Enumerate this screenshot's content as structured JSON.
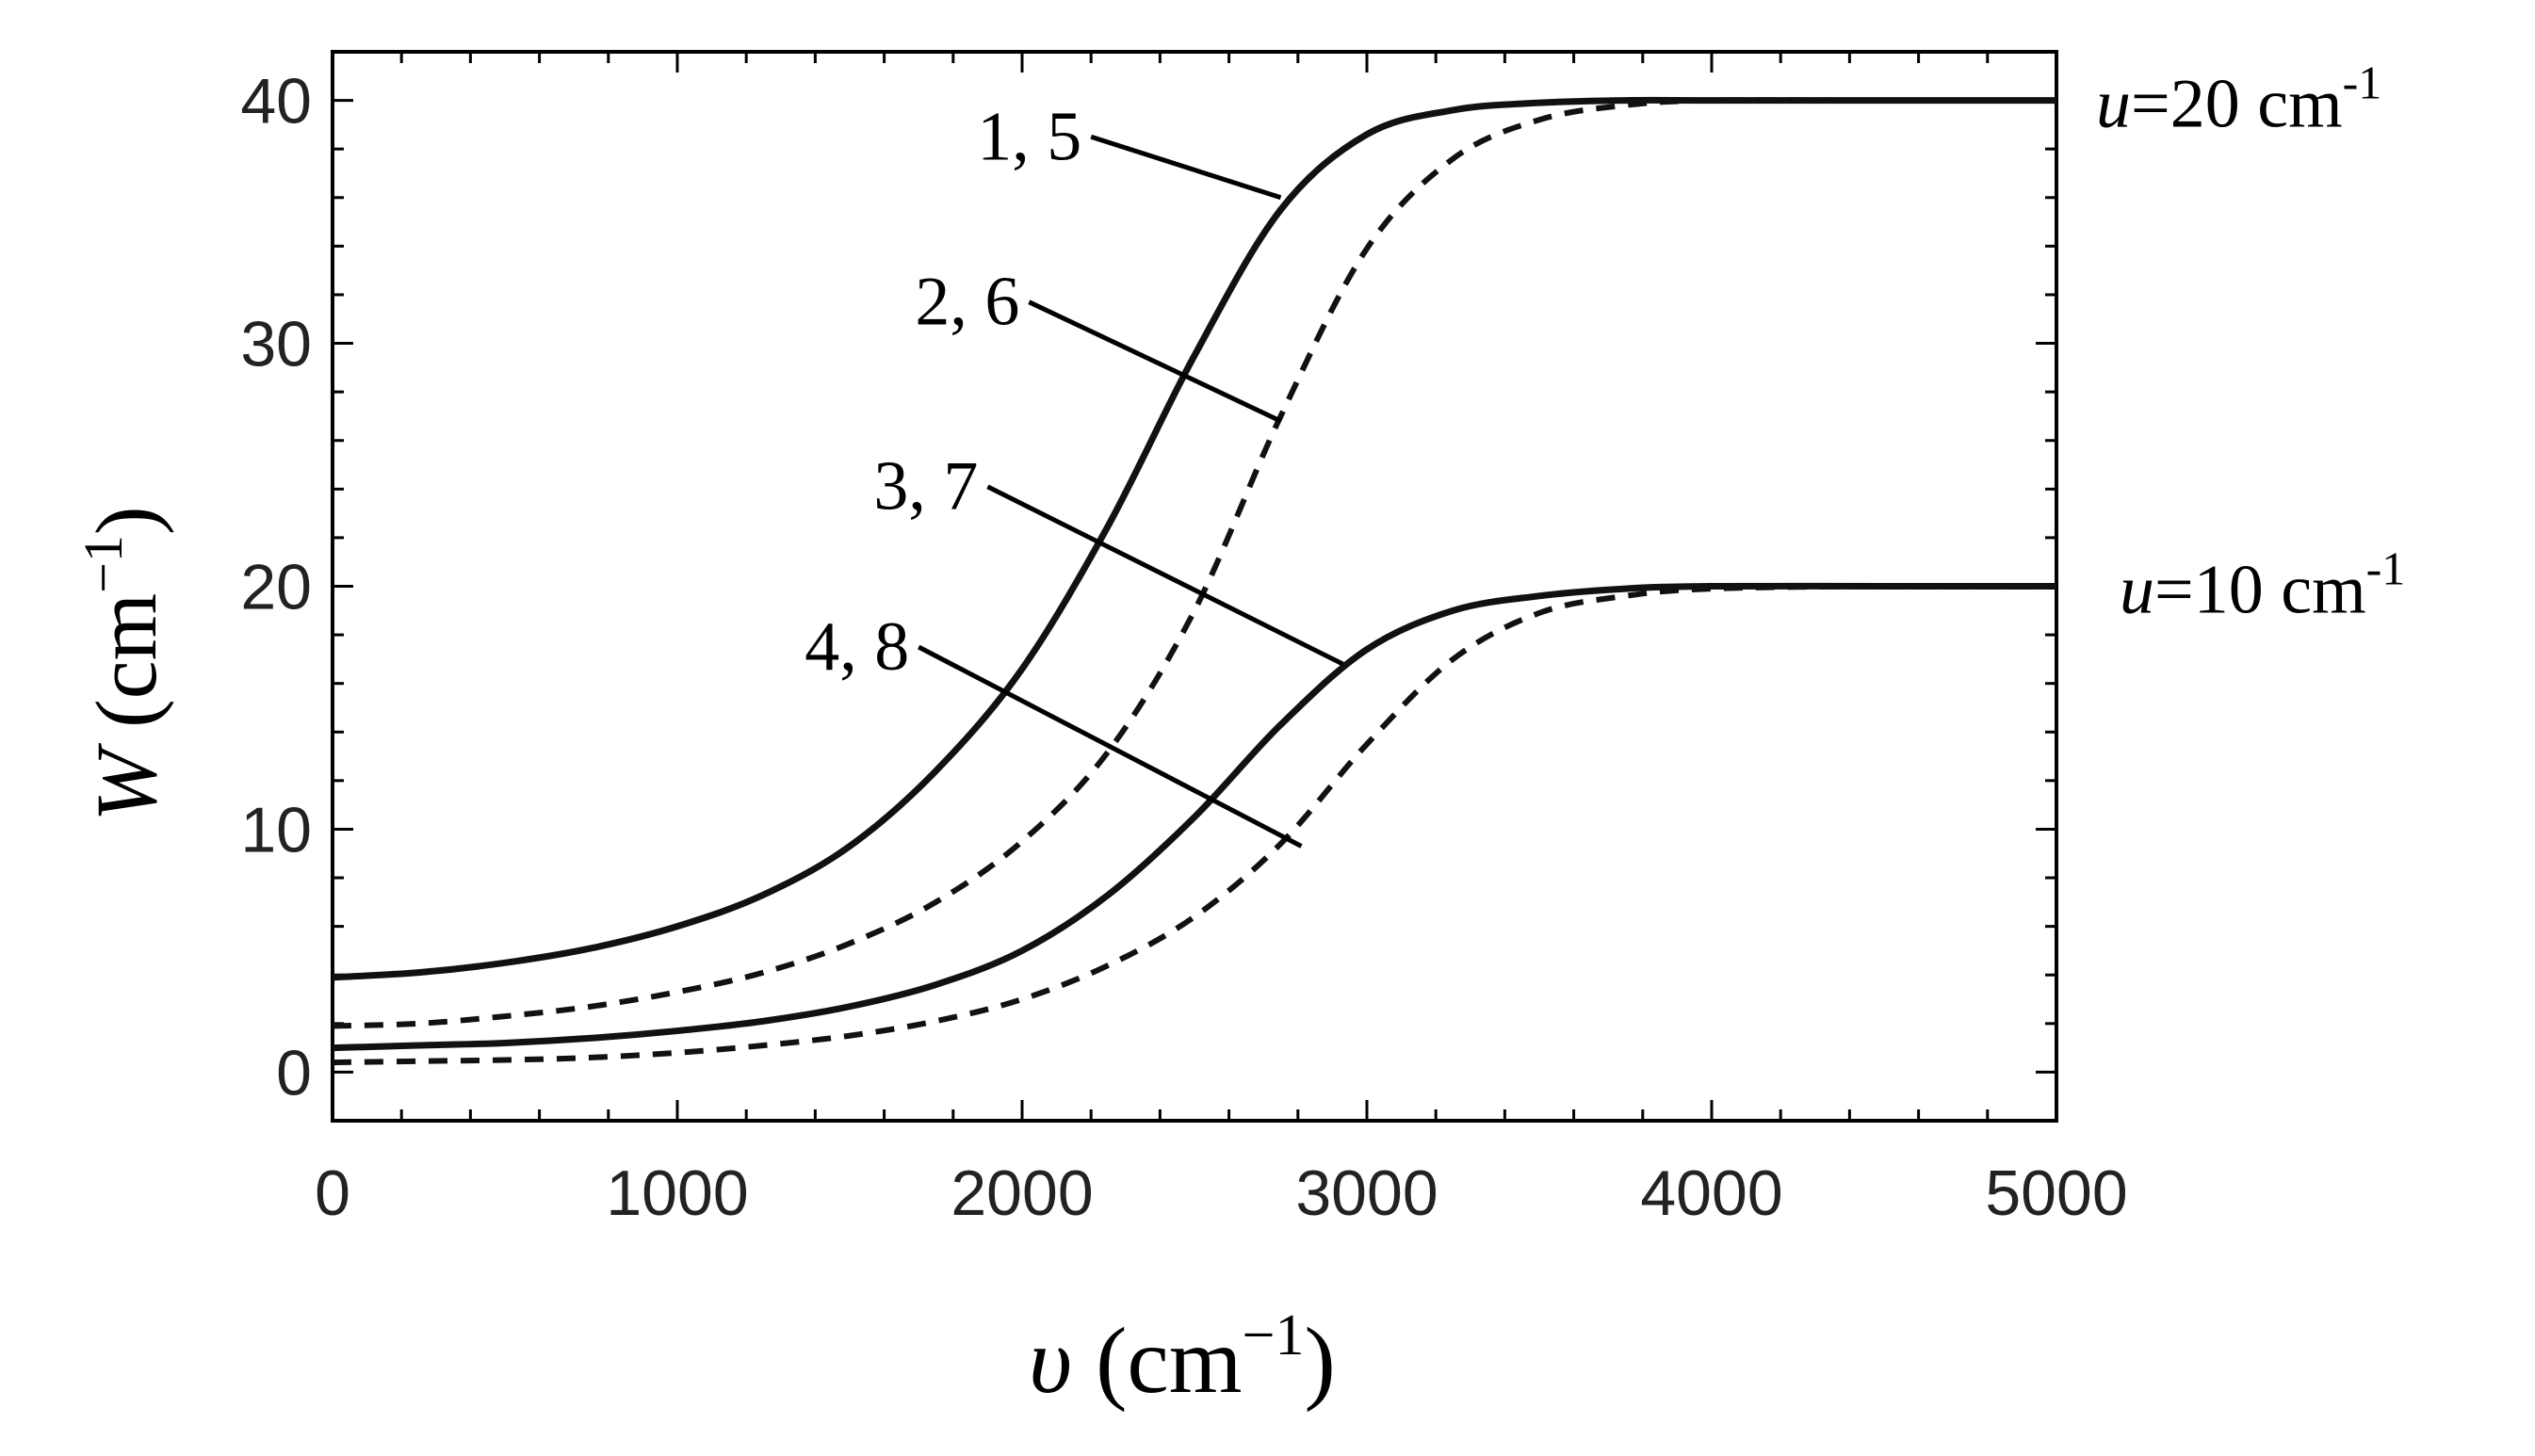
{
  "chart_data": {
    "type": "line",
    "xlabel": {
      "symbol": "υ",
      "unit_open": " (cm",
      "unit_exp": "−1",
      "unit_close": ")"
    },
    "ylabel": {
      "symbol": "W",
      "unit_open": " (cm",
      "unit_exp": "−1",
      "unit_close": ")"
    },
    "xlim": [
      0,
      5000
    ],
    "ylim": [
      -2,
      42
    ],
    "xticks": [
      0,
      1000,
      2000,
      3000,
      4000,
      5000
    ],
    "yticks": [
      0,
      10,
      20,
      30,
      40
    ],
    "xtick_labels": [
      "0",
      "1000",
      "2000",
      "3000",
      "4000",
      "5000"
    ],
    "ytick_labels": [
      "0",
      "10",
      "20",
      "30",
      "40"
    ],
    "grid": false,
    "series": [
      {
        "name": "1, 5",
        "style": "solid",
        "x": [
          0,
          250,
          500,
          750,
          1000,
          1250,
          1500,
          1750,
          2000,
          2250,
          2500,
          2750,
          3000,
          3250,
          3500,
          3750,
          4000,
          4500,
          5000
        ],
        "y": [
          3.9,
          4.1,
          4.5,
          5.1,
          6.0,
          7.3,
          9.3,
          12.4,
          16.6,
          22.5,
          29.5,
          35.5,
          38.6,
          39.6,
          39.9,
          40.0,
          40.0,
          40.0,
          40.0
        ]
      },
      {
        "name": "2, 6",
        "style": "dashed",
        "x": [
          0,
          250,
          500,
          750,
          1000,
          1250,
          1500,
          1750,
          2000,
          2250,
          2500,
          2750,
          3000,
          3250,
          3500,
          3750,
          4000,
          4500,
          5000
        ],
        "y": [
          1.9,
          2.0,
          2.3,
          2.7,
          3.3,
          4.1,
          5.3,
          7.0,
          9.5,
          13.2,
          19.0,
          27.0,
          33.9,
          37.6,
          39.2,
          39.8,
          40.0,
          40.0,
          40.0
        ]
      },
      {
        "name": "3, 7",
        "style": "solid",
        "x": [
          0,
          250,
          500,
          750,
          1000,
          1250,
          1500,
          1750,
          2000,
          2250,
          2500,
          2750,
          3000,
          3250,
          3500,
          3750,
          4000,
          4500,
          5000
        ],
        "y": [
          1.0,
          1.1,
          1.2,
          1.4,
          1.7,
          2.1,
          2.7,
          3.6,
          5.0,
          7.3,
          10.5,
          14.3,
          17.4,
          19.0,
          19.6,
          19.9,
          20.0,
          20.0,
          20.0
        ]
      },
      {
        "name": "4, 8",
        "style": "dashed",
        "x": [
          0,
          250,
          500,
          750,
          1000,
          1250,
          1500,
          1750,
          2000,
          2250,
          2500,
          2750,
          3000,
          3250,
          3500,
          3750,
          4000,
          4500,
          5000
        ],
        "y": [
          0.4,
          0.45,
          0.5,
          0.6,
          0.8,
          1.1,
          1.5,
          2.1,
          3.0,
          4.4,
          6.4,
          9.4,
          13.5,
          17.0,
          18.9,
          19.6,
          19.9,
          20.0,
          20.0
        ]
      }
    ],
    "curve_labels": [
      {
        "text": "1, 5",
        "x": 2200,
        "y": 38.5,
        "tx": 2750,
        "ty": 36.0
      },
      {
        "text": "2, 6",
        "x": 2020,
        "y": 31.7,
        "tx": 2750,
        "ty": 26.8
      },
      {
        "text": "3, 7",
        "x": 1900,
        "y": 24.1,
        "tx": 2930,
        "ty": 16.8
      },
      {
        "text": "4, 8",
        "x": 1700,
        "y": 17.5,
        "tx": 2810,
        "ty": 9.3
      }
    ],
    "annotations": [
      {
        "var": "u",
        "rest": "=20 cm",
        "exp": "-1",
        "level": 40
      },
      {
        "var": "u",
        "rest": "=10 cm",
        "exp": "-1",
        "level": 20
      }
    ]
  }
}
